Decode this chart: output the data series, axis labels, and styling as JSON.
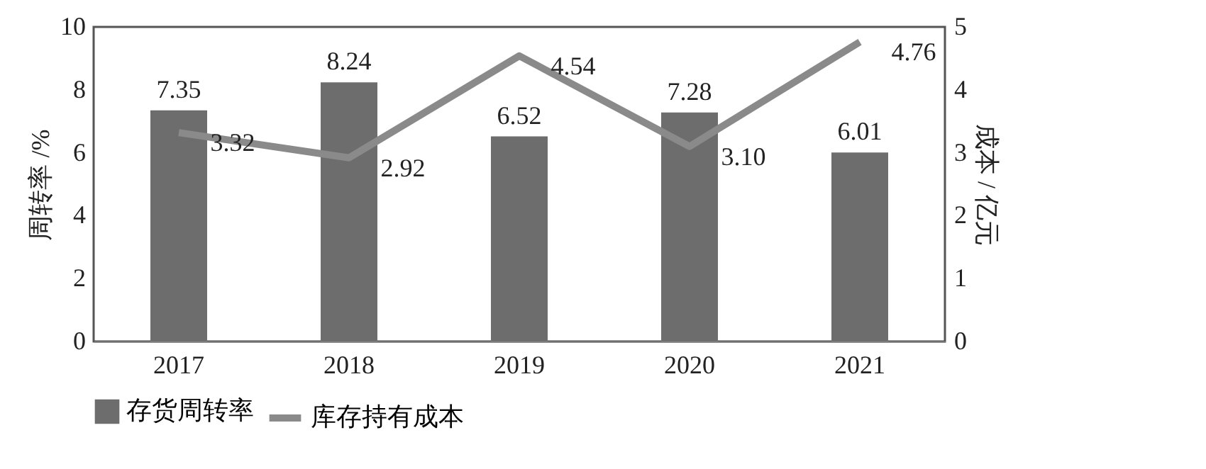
{
  "chart_data": {
    "type": "bar",
    "categories": [
      "2017",
      "2018",
      "2019",
      "2020",
      "2021"
    ],
    "ylabel": "周转率 /%",
    "y2label": "成本 / 亿元",
    "ylim": [
      0,
      10
    ],
    "yticks": [
      0,
      2,
      4,
      6,
      8,
      10
    ],
    "y2lim": [
      0,
      5
    ],
    "y2ticks": [
      0,
      1,
      2,
      3,
      4,
      5
    ],
    "series": [
      {
        "name": "存货周转率",
        "color": "#6d6d6d",
        "values": [
          7.35,
          8.24,
          6.52,
          7.28,
          6.01
        ],
        "data_labels": true
      },
      {
        "name": "库存持有成本",
        "type": "line",
        "axis": "y2",
        "color": "#8a8a8a",
        "values": [
          3.32,
          2.92,
          4.54,
          3.1,
          4.76
        ],
        "value_labels": [
          "3.32",
          "2.92",
          "4.54",
          "3.10",
          "4.76"
        ]
      }
    ],
    "grid": false,
    "legend": "bottom",
    "marker": "none",
    "line_style": "solid"
  }
}
